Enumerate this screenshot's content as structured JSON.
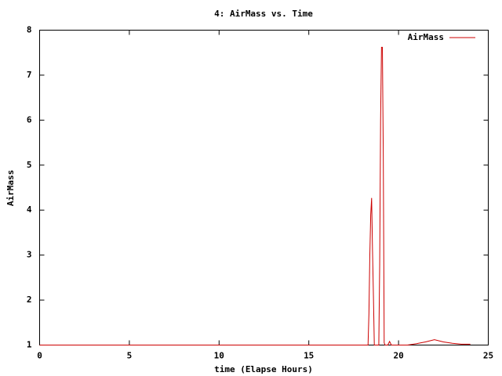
{
  "chart_data": {
    "type": "line",
    "title": "4: AirMass vs. Time",
    "x_label": "time (Elapse Hours)",
    "y_label": "AirMass",
    "x": [
      0,
      18.3,
      18.35,
      18.4,
      18.45,
      18.5,
      18.55,
      18.6,
      18.65,
      18.9,
      18.95,
      19.0,
      19.05,
      19.1,
      19.15,
      19.2,
      19.25,
      19.4,
      19.5,
      19.6,
      20.5,
      21.0,
      21.5,
      22.0,
      22.5,
      23.0,
      23.5,
      24.0
    ],
    "series": [
      {
        "name": "AirMass",
        "color": "#cc0000",
        "values": [
          1,
          1,
          1.7,
          3.0,
          3.9,
          4.27,
          3.1,
          2.1,
          1,
          1,
          2.8,
          6.0,
          7.62,
          7.62,
          5.2,
          1.05,
          1,
          1,
          1.08,
          1,
          1,
          1.03,
          1.07,
          1.12,
          1.07,
          1.04,
          1.02,
          1.02
        ]
      }
    ],
    "xlim": [
      0,
      25
    ],
    "xticks": [
      0,
      5,
      10,
      15,
      20,
      25
    ],
    "ylim": [
      1,
      8
    ],
    "yticks": [
      1,
      2,
      3,
      4,
      5,
      6,
      7,
      8
    ],
    "grid": false,
    "legend_position": "top-right"
  }
}
